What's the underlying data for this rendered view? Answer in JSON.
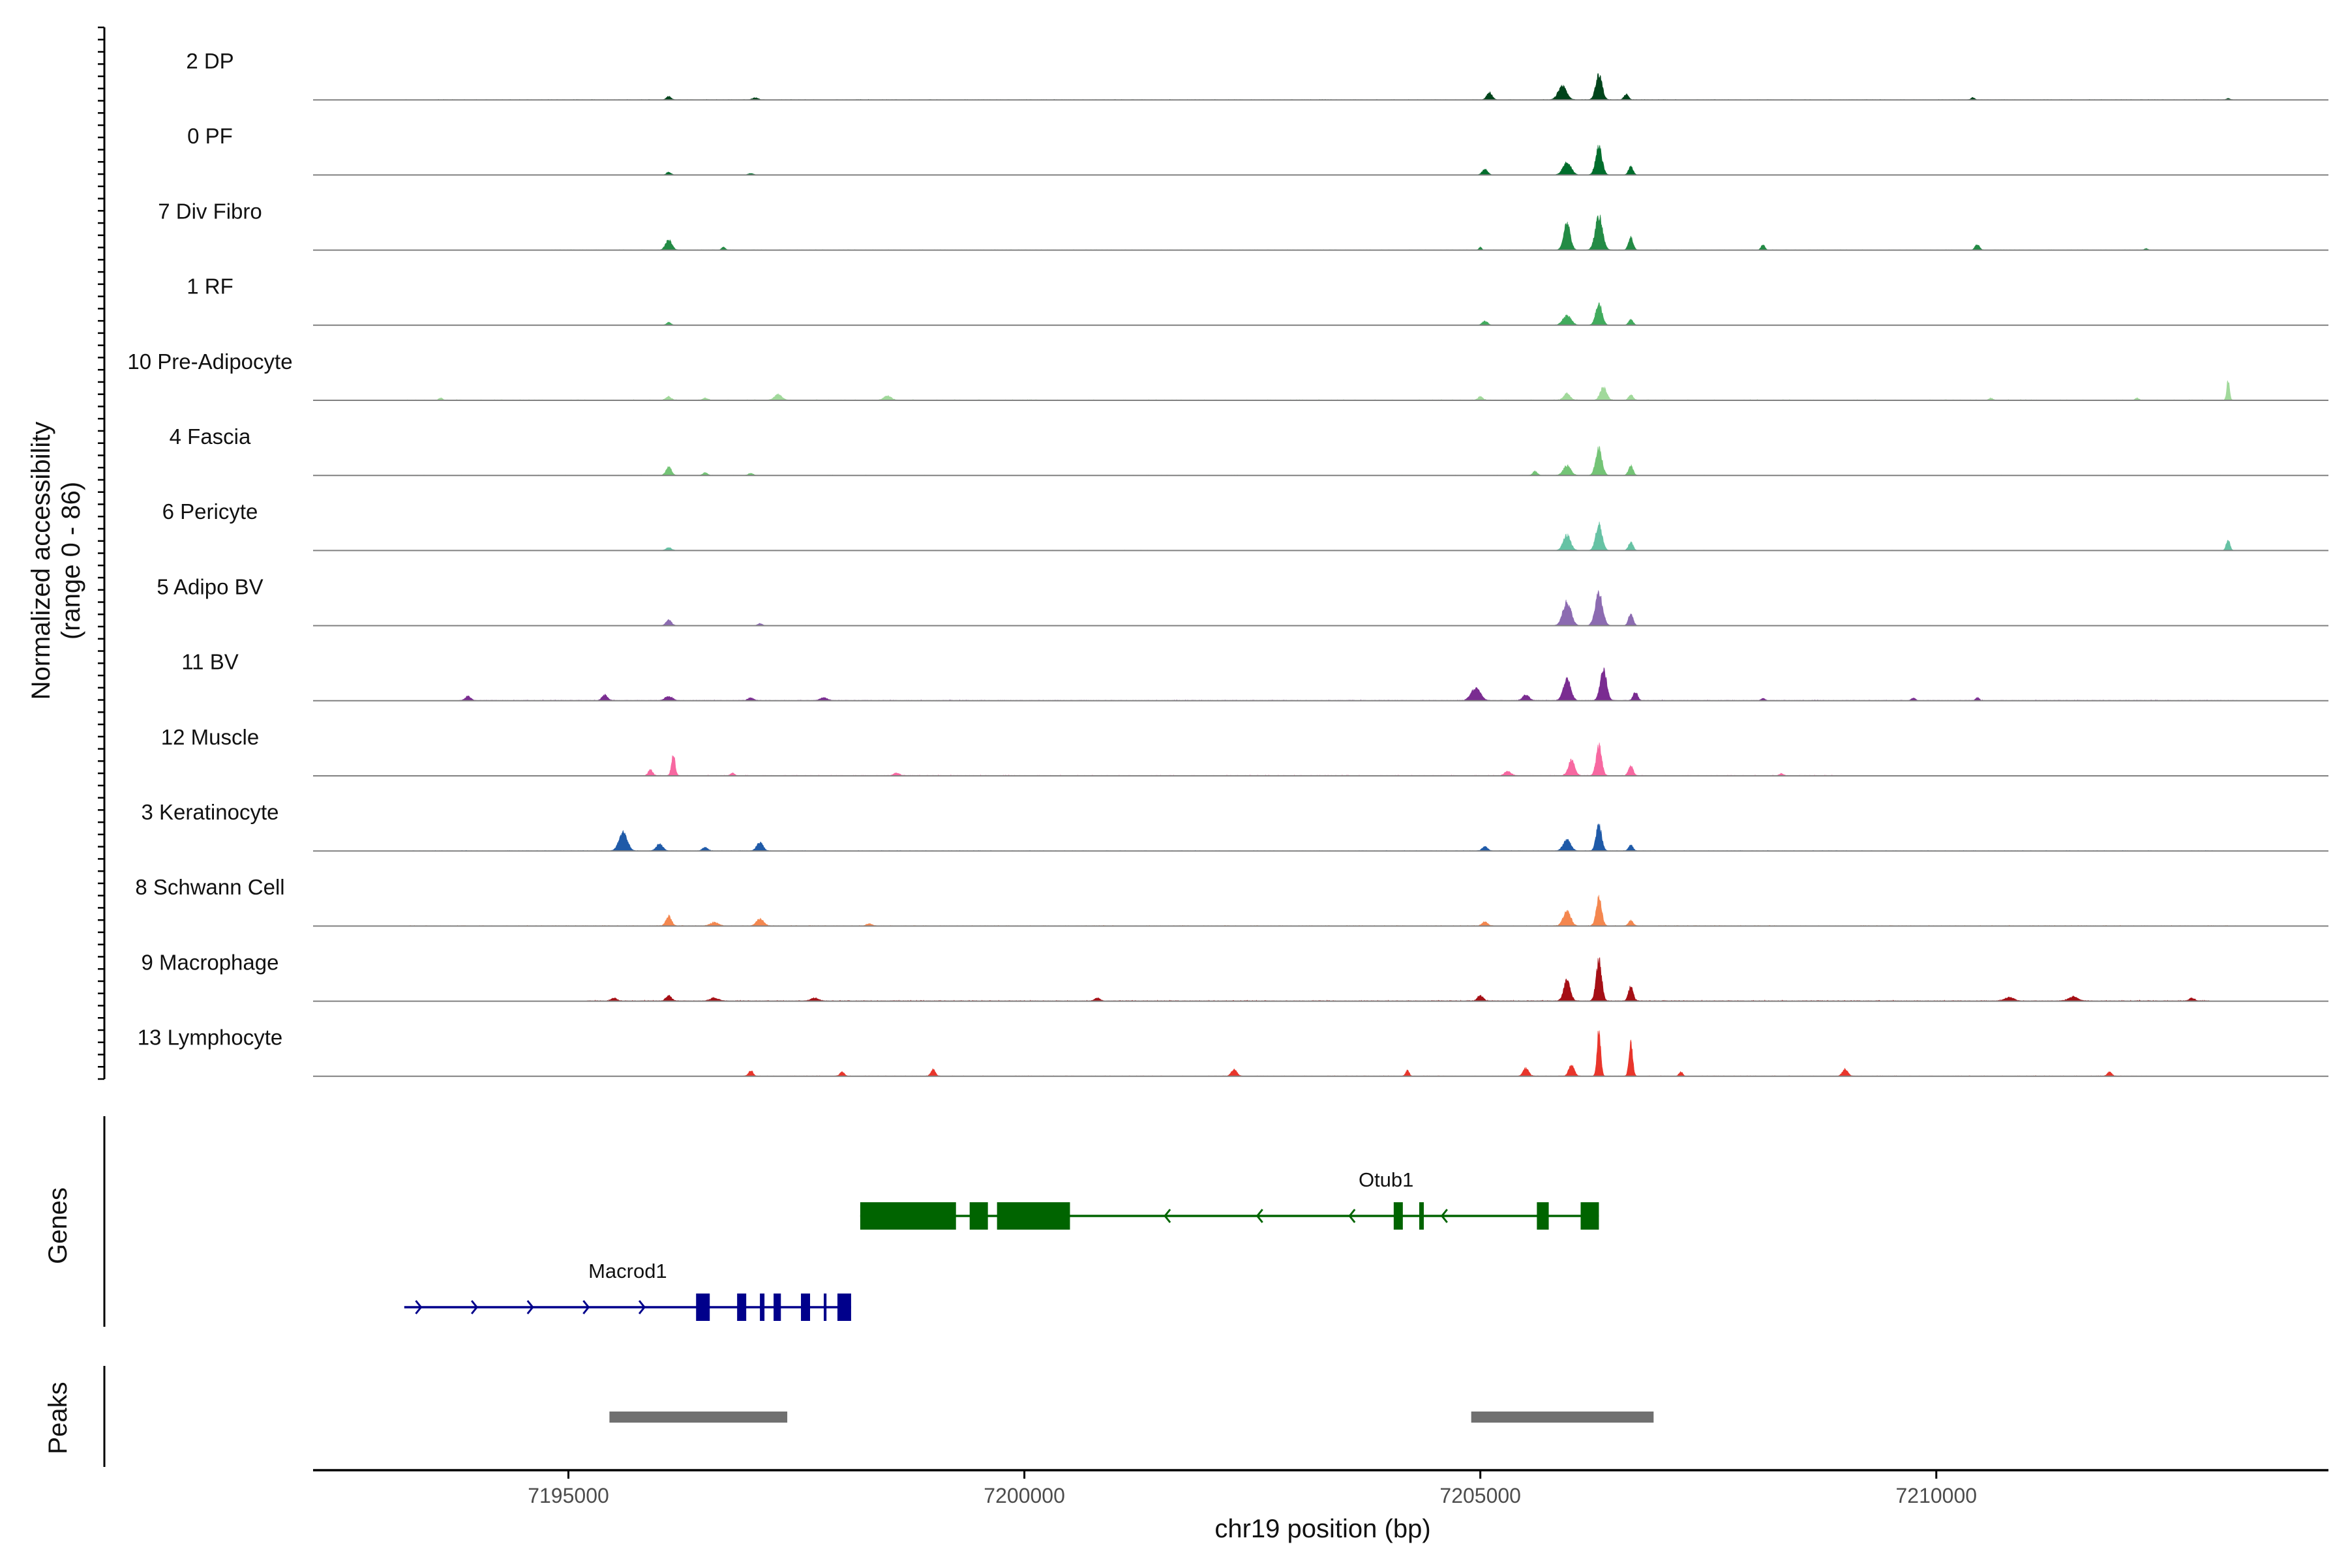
{
  "chart_data": {
    "type": "coverage-track",
    "chromosome": "chr19",
    "xlabel": "chr19 position (bp)",
    "xlim": [
      7192200,
      7214300
    ],
    "x_ticks": [
      7195000,
      7200000,
      7205000,
      7210000
    ],
    "x_tick_labels": [
      "7195000",
      "7200000",
      "7205000",
      "7210000"
    ],
    "coverage_ylabel_line1": "Normalized accessibility",
    "coverage_ylabel_line2": "(range 0 - 86)",
    "ylim": [
      0,
      86
    ],
    "tracks": [
      {
        "name": "2 DP",
        "color": "#00441b",
        "peaks": [
          [
            7196100,
            5,
            50
          ],
          [
            7197050,
            3,
            60
          ],
          [
            7205100,
            10,
            60
          ],
          [
            7205900,
            20,
            90
          ],
          [
            7206300,
            36,
            70
          ],
          [
            7206600,
            8,
            50
          ],
          [
            7210400,
            3,
            40
          ],
          [
            7213200,
            2,
            40
          ]
        ],
        "noise": 0.8,
        "span": [
          7193200,
          7213300
        ]
      },
      {
        "name": "0 PF",
        "color": "#006d2c",
        "peaks": [
          [
            7196100,
            4,
            50
          ],
          [
            7197000,
            2,
            60
          ],
          [
            7205050,
            8,
            60
          ],
          [
            7205950,
            18,
            90
          ],
          [
            7206300,
            40,
            70
          ],
          [
            7206650,
            12,
            50
          ]
        ],
        "noise": 0.6,
        "span": [
          7193200,
          7207000
        ]
      },
      {
        "name": "7 Div Fibro",
        "color": "#238b45",
        "peaks": [
          [
            7196100,
            14,
            70
          ],
          [
            7196700,
            4,
            40
          ],
          [
            7205000,
            4,
            30
          ],
          [
            7205950,
            40,
            70
          ],
          [
            7206300,
            48,
            80
          ],
          [
            7206650,
            18,
            50
          ],
          [
            7208100,
            8,
            40
          ],
          [
            7210450,
            8,
            50
          ],
          [
            7212300,
            2,
            40
          ]
        ],
        "noise": 0.7,
        "span": [
          7194800,
          7212500
        ]
      },
      {
        "name": "1 RF",
        "color": "#41ab5d",
        "peaks": [
          [
            7196100,
            4,
            50
          ],
          [
            7205050,
            6,
            60
          ],
          [
            7205950,
            14,
            90
          ],
          [
            7206300,
            30,
            70
          ],
          [
            7206650,
            8,
            50
          ]
        ],
        "noise": 0.5,
        "span": [
          7193200,
          7213300
        ]
      },
      {
        "name": "10 Pre-Adipocyte",
        "color": "#a1d99b",
        "peaks": [
          [
            7193600,
            3,
            40
          ],
          [
            7196100,
            5,
            60
          ],
          [
            7196500,
            3,
            50
          ],
          [
            7197300,
            8,
            80
          ],
          [
            7198500,
            6,
            80
          ],
          [
            7205000,
            5,
            50
          ],
          [
            7205950,
            10,
            70
          ],
          [
            7206350,
            18,
            70
          ],
          [
            7206650,
            8,
            50
          ],
          [
            7210600,
            3,
            40
          ],
          [
            7212200,
            3,
            40
          ],
          [
            7213200,
            30,
            30
          ]
        ],
        "noise": 1.2,
        "span": [
          7193200,
          7213300
        ]
      },
      {
        "name": "4 Fascia",
        "color": "#74c476",
        "peaks": [
          [
            7196100,
            12,
            60
          ],
          [
            7196500,
            4,
            50
          ],
          [
            7197000,
            3,
            50
          ],
          [
            7205600,
            6,
            50
          ],
          [
            7205950,
            14,
            80
          ],
          [
            7206300,
            38,
            70
          ],
          [
            7206650,
            14,
            50
          ]
        ],
        "noise": 0.6,
        "span": [
          7193200,
          7213300
        ]
      },
      {
        "name": "6 Pericyte",
        "color": "#66c2a4",
        "peaks": [
          [
            7196100,
            4,
            60
          ],
          [
            7205950,
            22,
            80
          ],
          [
            7206300,
            38,
            70
          ],
          [
            7206650,
            12,
            50
          ],
          [
            7213200,
            16,
            40
          ]
        ],
        "noise": 0.7,
        "span": [
          7193200,
          7213300
        ]
      },
      {
        "name": "5 Adipo BV",
        "color": "#8c6bb1",
        "peaks": [
          [
            7196100,
            8,
            60
          ],
          [
            7197100,
            3,
            50
          ],
          [
            7205950,
            34,
            90
          ],
          [
            7206300,
            48,
            80
          ],
          [
            7206650,
            18,
            50
          ]
        ],
        "noise": 0.4,
        "span": [
          7193200,
          7213300
        ]
      },
      {
        "name": "11 BV",
        "color": "#7a2c91",
        "peaks": [
          [
            7193900,
            6,
            60
          ],
          [
            7195400,
            8,
            60
          ],
          [
            7196100,
            6,
            80
          ],
          [
            7197000,
            4,
            60
          ],
          [
            7197800,
            4,
            80
          ],
          [
            7204950,
            18,
            100
          ],
          [
            7205500,
            8,
            70
          ],
          [
            7205950,
            30,
            80
          ],
          [
            7206350,
            44,
            70
          ],
          [
            7206700,
            12,
            50
          ],
          [
            7208100,
            3,
            40
          ],
          [
            7209750,
            4,
            40
          ],
          [
            7210450,
            4,
            40
          ]
        ],
        "noise": 1.3,
        "span": [
          7193800,
          7213300
        ]
      },
      {
        "name": "12 Muscle",
        "color": "#f768a1",
        "peaks": [
          [
            7195900,
            8,
            50
          ],
          [
            7196150,
            30,
            40
          ],
          [
            7196800,
            4,
            40
          ],
          [
            7198600,
            4,
            60
          ],
          [
            7205300,
            6,
            70
          ],
          [
            7206000,
            22,
            70
          ],
          [
            7206300,
            44,
            60
          ],
          [
            7206650,
            14,
            50
          ],
          [
            7208300,
            3,
            40
          ]
        ],
        "noise": 1.4,
        "span": [
          7195800,
          7208900
        ]
      },
      {
        "name": "3 Keratinocyte",
        "color": "#1f5aa8",
        "peaks": [
          [
            7195600,
            26,
            90
          ],
          [
            7196000,
            10,
            70
          ],
          [
            7196500,
            5,
            60
          ],
          [
            7197100,
            12,
            70
          ],
          [
            7205050,
            6,
            60
          ],
          [
            7205950,
            16,
            80
          ],
          [
            7206300,
            38,
            60
          ],
          [
            7206650,
            8,
            50
          ]
        ],
        "noise": 0.8,
        "span": [
          7193200,
          7213300
        ]
      },
      {
        "name": "8 Schwann Cell",
        "color": "#f4874f",
        "peaks": [
          [
            7196100,
            14,
            60
          ],
          [
            7196600,
            5,
            90
          ],
          [
            7197100,
            10,
            80
          ],
          [
            7198300,
            3,
            60
          ],
          [
            7205050,
            6,
            60
          ],
          [
            7205950,
            22,
            80
          ],
          [
            7206300,
            40,
            60
          ],
          [
            7206650,
            8,
            50
          ]
        ],
        "noise": 1.2,
        "span": [
          7193200,
          7213300
        ]
      },
      {
        "name": "9 Macrophage",
        "color": "#a50f15",
        "peaks": [
          [
            7195500,
            4,
            60
          ],
          [
            7196100,
            8,
            60
          ],
          [
            7196600,
            4,
            90
          ],
          [
            7197700,
            4,
            80
          ],
          [
            7200800,
            4,
            60
          ],
          [
            7205000,
            8,
            60
          ],
          [
            7205950,
            30,
            70
          ],
          [
            7206300,
            60,
            60
          ],
          [
            7206650,
            22,
            50
          ],
          [
            7210800,
            5,
            100
          ],
          [
            7211500,
            6,
            100
          ],
          [
            7212800,
            4,
            60
          ]
        ],
        "noise": 1.6,
        "span": [
          7195200,
          7213000
        ]
      },
      {
        "name": "13 Lymphocyte",
        "color": "#e9352b",
        "peaks": [
          [
            7197000,
            8,
            50
          ],
          [
            7198000,
            6,
            50
          ],
          [
            7199000,
            10,
            50
          ],
          [
            7202300,
            10,
            60
          ],
          [
            7204200,
            8,
            40
          ],
          [
            7205500,
            12,
            60
          ],
          [
            7206000,
            16,
            60
          ],
          [
            7206300,
            66,
            40
          ],
          [
            7206650,
            48,
            40
          ],
          [
            7207200,
            6,
            40
          ],
          [
            7209000,
            10,
            60
          ],
          [
            7211900,
            6,
            50
          ]
        ],
        "noise": 1.0,
        "span": [
          7196800,
          7212300
        ]
      }
    ],
    "genes_ylabel": "Genes",
    "genes": [
      {
        "name": "Otub1",
        "color": "#006400",
        "strand": "-",
        "start": 7198200,
        "end": 7206300,
        "row": 0,
        "exons": [
          [
            7198200,
            7199250
          ],
          [
            7199400,
            7199600
          ],
          [
            7199700,
            7200500
          ],
          [
            7204050,
            7204150
          ],
          [
            7204330,
            7204380
          ],
          [
            7205620,
            7205750
          ],
          [
            7206100,
            7206300
          ]
        ]
      },
      {
        "name": "Macrod1",
        "color": "#00008b",
        "strand": "+",
        "start": 7193200,
        "end": 7198100,
        "row": 1,
        "exons": [
          [
            7196400,
            7196550
          ],
          [
            7196850,
            7196950
          ],
          [
            7197100,
            7197150
          ],
          [
            7197250,
            7197330
          ],
          [
            7197550,
            7197650
          ],
          [
            7197800,
            7197830
          ],
          [
            7197950,
            7198100
          ]
        ]
      }
    ],
    "peaks_ylabel": "Peaks",
    "peak_regions": [
      [
        7195450,
        7197400
      ],
      [
        7204900,
        7206900
      ]
    ]
  },
  "colors": {
    "axis": "#000000",
    "baseline": "#808080",
    "peak_bar": "#707070",
    "tick_text": "#4d4d4d"
  }
}
